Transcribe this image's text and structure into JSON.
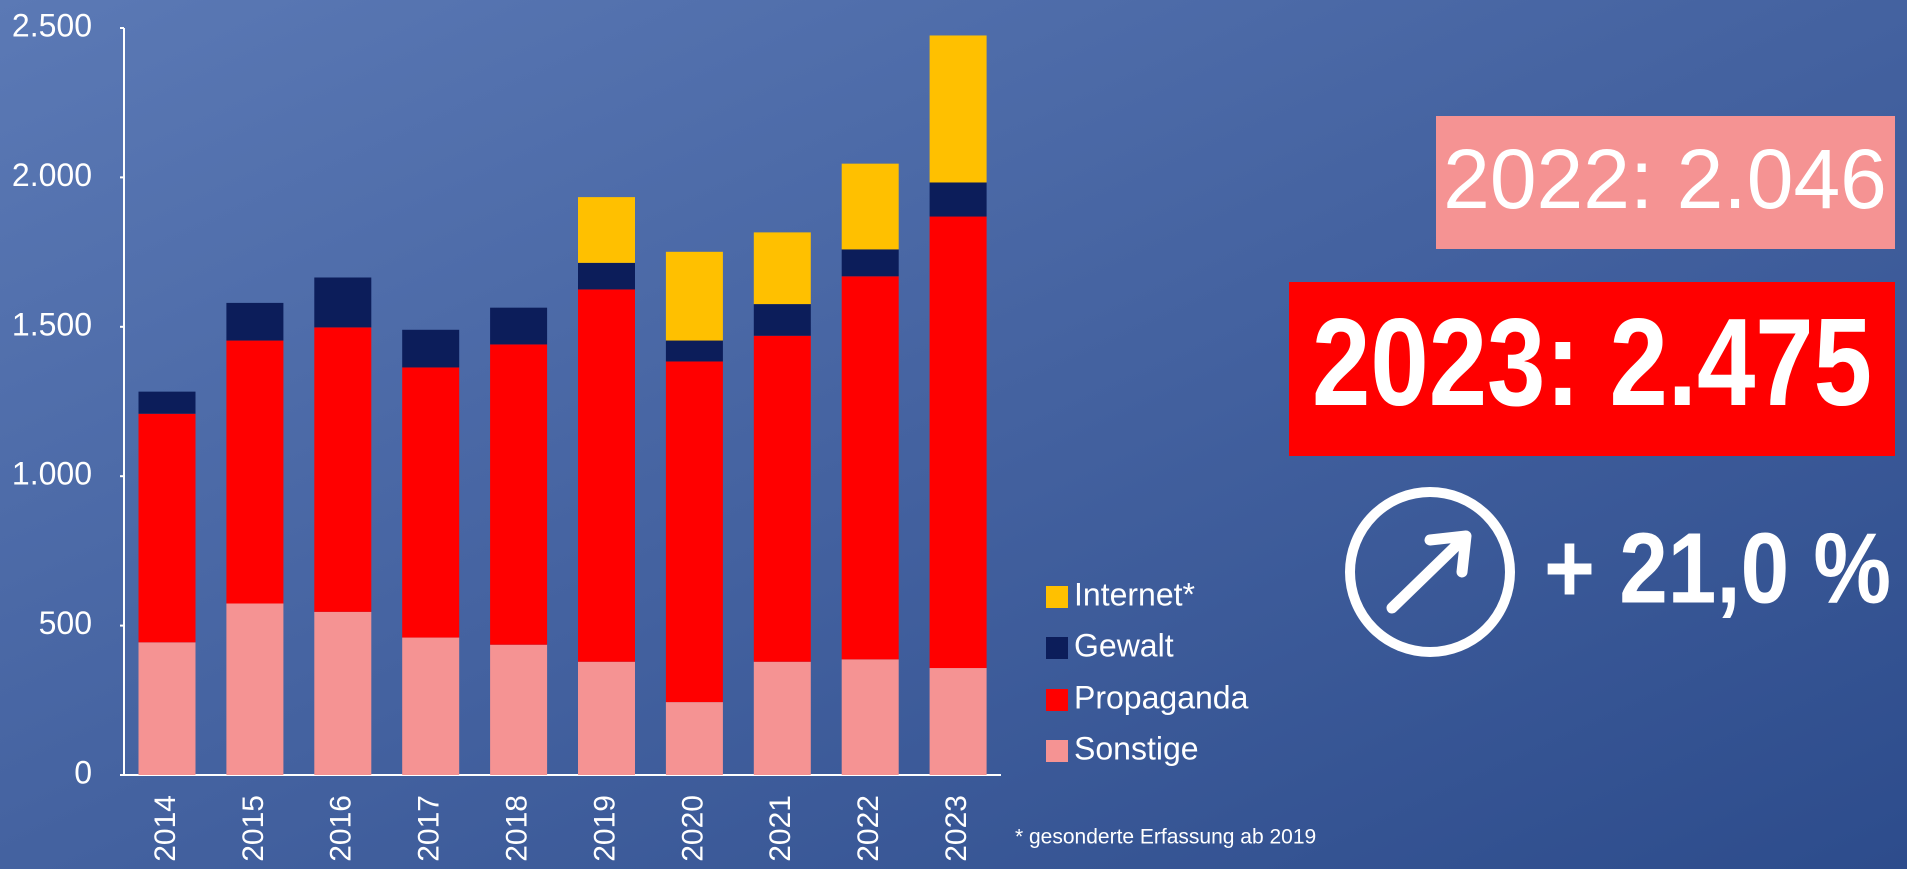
{
  "chart_data": {
    "type": "bar",
    "stacked": true,
    "categories": [
      "2014",
      "2015",
      "2016",
      "2017",
      "2018",
      "2019",
      "2020",
      "2021",
      "2022",
      "2023"
    ],
    "series": [
      {
        "name": "Sonstige",
        "color": "#f59393",
        "values": [
          444,
          574,
          546,
          460,
          436,
          379,
          244,
          379,
          387,
          358
        ]
      },
      {
        "name": "Propaganda",
        "color": "#ff0000",
        "values": [
          765,
          880,
          952,
          904,
          1005,
          1246,
          1140,
          1091,
          1282,
          1511
        ]
      },
      {
        "name": "Gewalt",
        "color": "#0c1d5a",
        "values": [
          74,
          126,
          167,
          126,
          123,
          89,
          70,
          106,
          90,
          114
        ]
      },
      {
        "name": "Internet*",
        "color": "#ffc000",
        "values": [
          null,
          null,
          null,
          null,
          null,
          220,
          297,
          240,
          287,
          492
        ]
      }
    ],
    "ylim": [
      0,
      2500
    ],
    "yticks": [
      0,
      {
        "value": 500,
        "label": "500"
      },
      {
        "value": 1000,
        "label": "1.000"
      },
      {
        "value": 1500,
        "label": "1.500"
      },
      {
        "value": 2000,
        "label": "2.000"
      },
      {
        "value": 2500,
        "label": "2.500"
      }
    ],
    "grid": false,
    "legend": "right",
    "annotations": [
      "2022: 2.046",
      "2023: 2.475",
      "+ 21,0 %"
    ],
    "footnote": "* gesonderte Erfassung ab 2019"
  }
}
